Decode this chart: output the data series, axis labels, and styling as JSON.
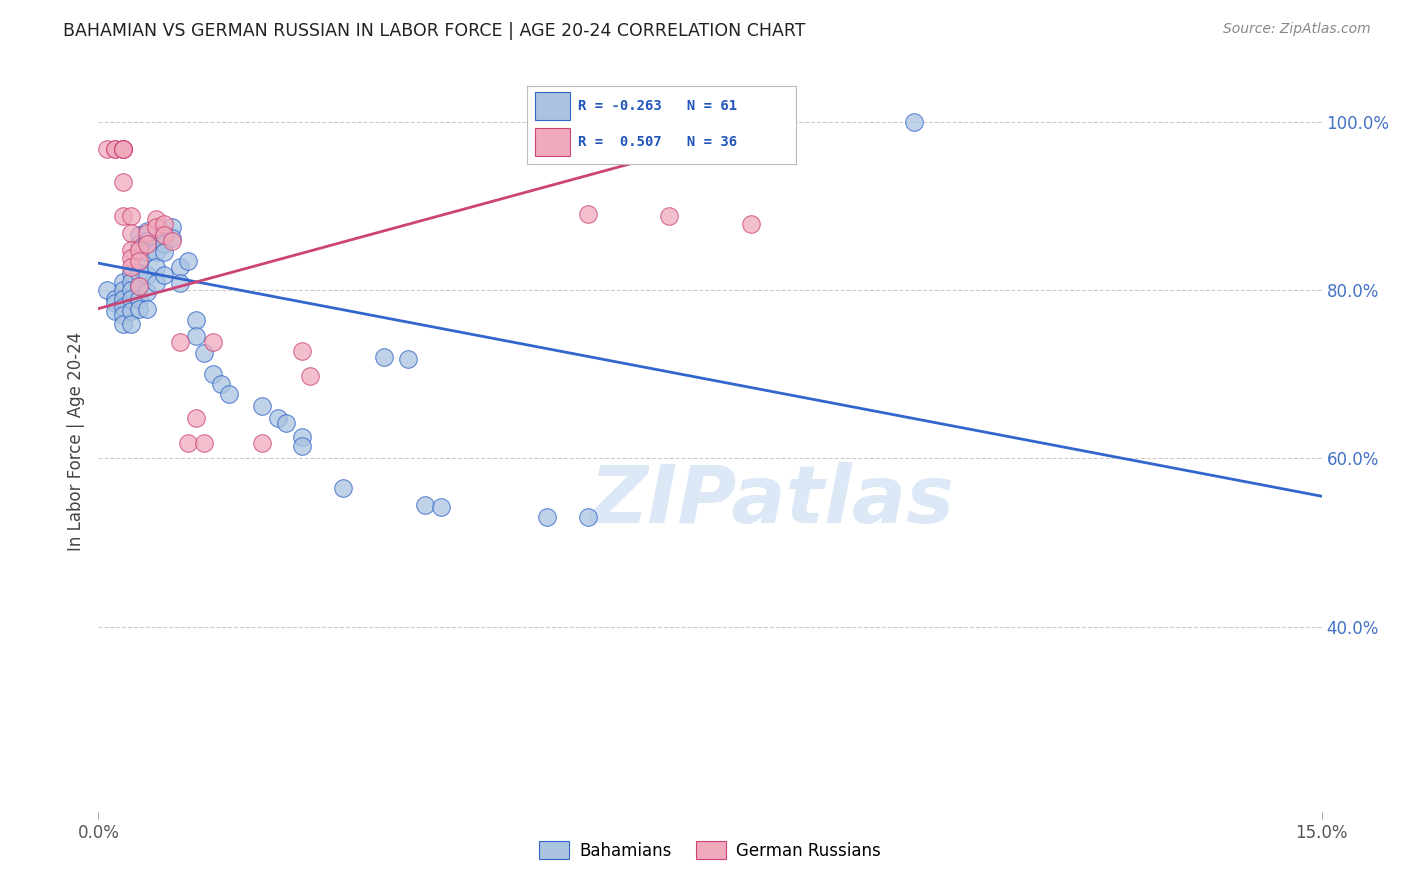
{
  "title": "BAHAMIAN VS GERMAN RUSSIAN IN LABOR FORCE | AGE 20-24 CORRELATION CHART",
  "source": "Source: ZipAtlas.com",
  "ylabel": "In Labor Force | Age 20-24",
  "watermark": "ZIPatlas",
  "legend_blue_r": "-0.263",
  "legend_blue_n": "61",
  "legend_pink_r": "0.507",
  "legend_pink_n": "36",
  "blue_color": "#aac4e0",
  "pink_color": "#f0aabb",
  "blue_line_color": "#3366cc",
  "pink_line_color": "#cc4477",
  "xmin": 0.0,
  "xmax": 0.15,
  "ymin": 0.18,
  "ymax": 1.06,
  "yticks": [
    0.4,
    0.6,
    0.8,
    1.0
  ],
  "ytick_labels": [
    "40.0%",
    "60.0%",
    "80.0%",
    "100.0%"
  ],
  "blue_scatter": [
    [
      0.001,
      0.8
    ],
    [
      0.002,
      0.79
    ],
    [
      0.002,
      0.785
    ],
    [
      0.002,
      0.775
    ],
    [
      0.003,
      0.81
    ],
    [
      0.003,
      0.8
    ],
    [
      0.003,
      0.79
    ],
    [
      0.003,
      0.78
    ],
    [
      0.003,
      0.77
    ],
    [
      0.003,
      0.76
    ],
    [
      0.004,
      0.82
    ],
    [
      0.004,
      0.81
    ],
    [
      0.004,
      0.8
    ],
    [
      0.004,
      0.79
    ],
    [
      0.004,
      0.775
    ],
    [
      0.004,
      0.76
    ],
    [
      0.005,
      0.865
    ],
    [
      0.005,
      0.855
    ],
    [
      0.005,
      0.835
    ],
    [
      0.005,
      0.82
    ],
    [
      0.005,
      0.805
    ],
    [
      0.005,
      0.79
    ],
    [
      0.005,
      0.778
    ],
    [
      0.006,
      0.87
    ],
    [
      0.006,
      0.858
    ],
    [
      0.006,
      0.845
    ],
    [
      0.006,
      0.818
    ],
    [
      0.006,
      0.798
    ],
    [
      0.006,
      0.778
    ],
    [
      0.007,
      0.858
    ],
    [
      0.007,
      0.845
    ],
    [
      0.007,
      0.828
    ],
    [
      0.007,
      0.808
    ],
    [
      0.008,
      0.868
    ],
    [
      0.008,
      0.855
    ],
    [
      0.008,
      0.845
    ],
    [
      0.008,
      0.818
    ],
    [
      0.009,
      0.875
    ],
    [
      0.009,
      0.862
    ],
    [
      0.01,
      0.828
    ],
    [
      0.01,
      0.808
    ],
    [
      0.011,
      0.835
    ],
    [
      0.012,
      0.765
    ],
    [
      0.012,
      0.745
    ],
    [
      0.013,
      0.725
    ],
    [
      0.014,
      0.7
    ],
    [
      0.015,
      0.688
    ],
    [
      0.016,
      0.676
    ],
    [
      0.02,
      0.662
    ],
    [
      0.022,
      0.648
    ],
    [
      0.023,
      0.642
    ],
    [
      0.025,
      0.625
    ],
    [
      0.025,
      0.615
    ],
    [
      0.03,
      0.565
    ],
    [
      0.035,
      0.72
    ],
    [
      0.038,
      0.718
    ],
    [
      0.04,
      0.545
    ],
    [
      0.042,
      0.542
    ],
    [
      0.055,
      0.53
    ],
    [
      0.06,
      0.53
    ],
    [
      0.1,
      1.0
    ]
  ],
  "pink_scatter": [
    [
      0.001,
      0.968
    ],
    [
      0.002,
      0.968
    ],
    [
      0.002,
      0.968
    ],
    [
      0.003,
      0.968
    ],
    [
      0.003,
      0.968
    ],
    [
      0.003,
      0.968
    ],
    [
      0.003,
      0.968
    ],
    [
      0.003,
      0.968
    ],
    [
      0.003,
      0.928
    ],
    [
      0.003,
      0.888
    ],
    [
      0.004,
      0.888
    ],
    [
      0.004,
      0.868
    ],
    [
      0.004,
      0.848
    ],
    [
      0.004,
      0.838
    ],
    [
      0.004,
      0.828
    ],
    [
      0.005,
      0.848
    ],
    [
      0.005,
      0.835
    ],
    [
      0.005,
      0.805
    ],
    [
      0.006,
      0.868
    ],
    [
      0.006,
      0.855
    ],
    [
      0.007,
      0.885
    ],
    [
      0.007,
      0.875
    ],
    [
      0.008,
      0.878
    ],
    [
      0.008,
      0.865
    ],
    [
      0.009,
      0.858
    ],
    [
      0.01,
      0.738
    ],
    [
      0.011,
      0.618
    ],
    [
      0.012,
      0.648
    ],
    [
      0.013,
      0.618
    ],
    [
      0.014,
      0.738
    ],
    [
      0.02,
      0.618
    ],
    [
      0.025,
      0.728
    ],
    [
      0.026,
      0.698
    ],
    [
      0.06,
      0.89
    ],
    [
      0.07,
      0.888
    ],
    [
      0.08,
      0.878
    ]
  ],
  "blue_line": [
    [
      0.0,
      0.832
    ],
    [
      0.15,
      0.555
    ]
  ],
  "pink_line": [
    [
      0.0,
      0.778
    ],
    [
      0.072,
      0.968
    ]
  ]
}
